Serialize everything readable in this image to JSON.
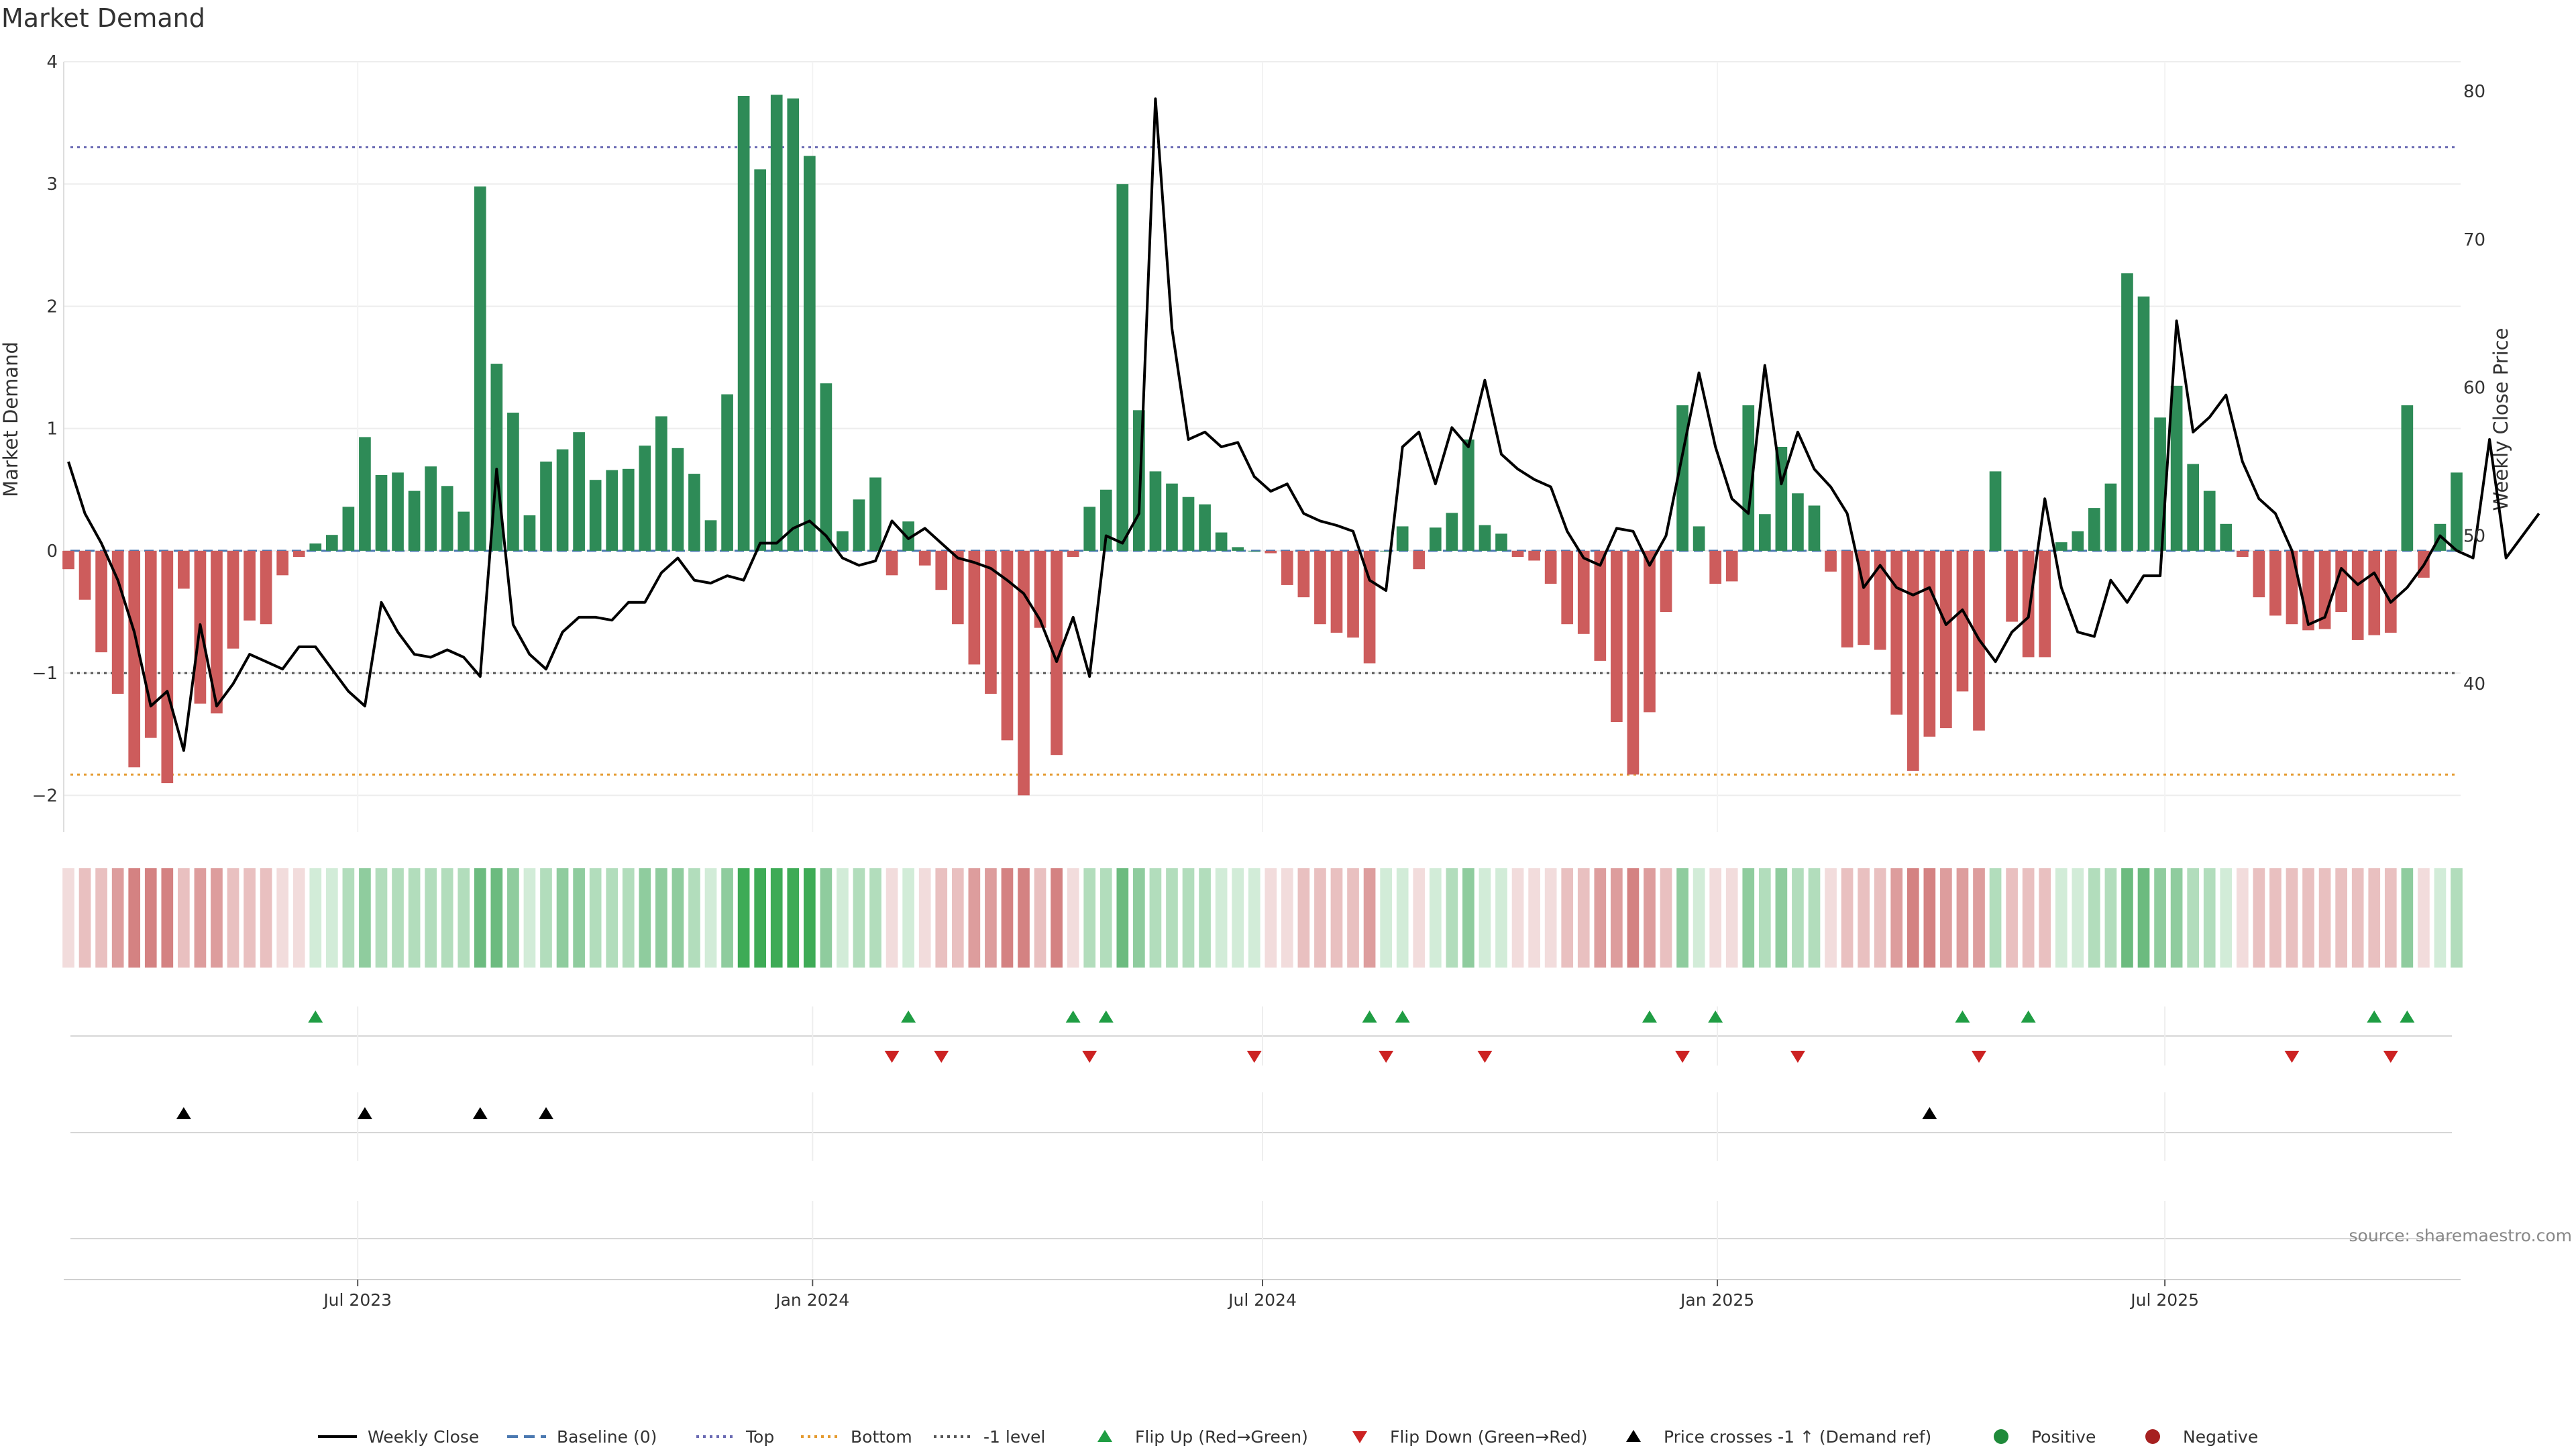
{
  "chart_data": {
    "type": "bar",
    "title": "Market Demand",
    "ylabel": "Market Demand",
    "y2label": "Weekly Close Price",
    "ylim": [
      -2.3,
      4.0
    ],
    "y2lim": [
      30,
      82
    ],
    "yticks": [
      4,
      3,
      2,
      1,
      0,
      -1,
      -2
    ],
    "yticklabels": [
      "4",
      "3",
      "2",
      "1",
      "0",
      "−1",
      "−2"
    ],
    "y2ticks": [
      80,
      70,
      60,
      50,
      40
    ],
    "y2ticklabels": [
      "80",
      "70",
      "60",
      "50",
      "40"
    ],
    "x_start": "2023-03-06",
    "x_end": "2025-10-27",
    "xticks": [
      {
        "date": "2023-07-01",
        "label": "Jul 2023"
      },
      {
        "date": "2024-01-01",
        "label": "Jan 2024"
      },
      {
        "date": "2024-07-01",
        "label": "Jul 2024"
      },
      {
        "date": "2025-01-01",
        "label": "Jan 2025"
      },
      {
        "date": "2025-07-01",
        "label": "Jul 2025"
      }
    ],
    "levels": {
      "top": 3.3,
      "bottom": -1.83,
      "minus_one": -1,
      "baseline": 0
    },
    "demand": [
      -0.15,
      -0.4,
      -0.83,
      -1.17,
      -1.77,
      -1.53,
      -1.9,
      -0.31,
      -1.25,
      -1.33,
      -0.8,
      -0.57,
      -0.6,
      -0.2,
      -0.05,
      0.06,
      0.13,
      0.36,
      0.93,
      0.62,
      0.64,
      0.49,
      0.69,
      0.53,
      0.32,
      2.98,
      1.53,
      1.13,
      0.29,
      0.73,
      0.83,
      0.97,
      0.58,
      0.66,
      0.67,
      0.86,
      1.1,
      0.84,
      0.63,
      0.25,
      1.28,
      3.72,
      3.12,
      3.73,
      3.7,
      3.23,
      1.37,
      0.16,
      0.42,
      0.6,
      -0.2,
      0.24,
      -0.12,
      -0.32,
      -0.6,
      -0.93,
      -1.17,
      -1.55,
      -2.0,
      -0.63,
      -1.67,
      -0.05,
      0.36,
      0.5,
      3.0,
      1.15,
      0.65,
      0.55,
      0.44,
      0.38,
      0.15,
      0.03,
      0.0,
      -0.02,
      -0.28,
      -0.38,
      -0.6,
      -0.67,
      -0.71,
      -0.92,
      0.0,
      0.2,
      -0.15,
      0.19,
      0.31,
      0.91,
      0.21,
      0.14,
      -0.05,
      -0.08,
      -0.27,
      -0.6,
      -0.68,
      -0.9,
      -1.4,
      -1.83,
      -1.32,
      -0.5,
      1.19,
      0.2,
      -0.27,
      -0.25,
      1.19,
      0.3,
      0.85,
      0.47,
      0.37,
      -0.17,
      -0.79,
      -0.77,
      -0.81,
      -1.34,
      -1.8,
      -1.52,
      -1.45,
      -1.15,
      -1.47,
      0.65,
      -0.58,
      -0.87,
      -0.87,
      0.07,
      0.16,
      0.35,
      0.55,
      2.27,
      2.08,
      1.09,
      1.35,
      0.71,
      0.49,
      0.22,
      -0.05,
      -0.38,
      -0.53,
      -0.6,
      -0.65,
      -0.64,
      -0.5,
      -0.73,
      -0.69,
      -0.67,
      1.19,
      -0.22,
      0.22,
      0.64
    ],
    "close": [
      55,
      51.5,
      49.5,
      47,
      43.5,
      38.5,
      39.5,
      35.5,
      44,
      38.5,
      40,
      42,
      41.5,
      41,
      42.5,
      42.5,
      41,
      39.5,
      38.5,
      45.5,
      43.5,
      42,
      41.8,
      42.3,
      41.8,
      40.5,
      54.5,
      44,
      42,
      41,
      43.5,
      44.5,
      44.5,
      44.3,
      45.5,
      45.5,
      47.5,
      48.5,
      47,
      46.8,
      47.3,
      47,
      49.5,
      49.5,
      50.5,
      51,
      50,
      48.5,
      48,
      48.3,
      51,
      49.8,
      50.5,
      49.5,
      48.5,
      48.2,
      47.8,
      47,
      46.1,
      44.3,
      41.5,
      44.5,
      40.5,
      50,
      49.5,
      51.5,
      79.5,
      64,
      56.5,
      57,
      56,
      56.3,
      54,
      53,
      53.5,
      51.5,
      51,
      50.7,
      50.3,
      47,
      46.3,
      56,
      57,
      53.5,
      57.3,
      56,
      60.5,
      55.5,
      54.5,
      53.8,
      53.3,
      50.3,
      48.5,
      48,
      50.5,
      50.3,
      48,
      50,
      55.5,
      61,
      56,
      52.5,
      51.5,
      61.5,
      53.5,
      57,
      54.5,
      53.3,
      51.5,
      46.5,
      48,
      46.5,
      46,
      46.5,
      44,
      45,
      43,
      41.5,
      43.5,
      44.5,
      52.5,
      46.5,
      43.5,
      43.2,
      47,
      45.5,
      47.3,
      47.3,
      64.5,
      57,
      58,
      59.5,
      55,
      52.5,
      51.5,
      49,
      44,
      44.5,
      47.8,
      46.7,
      47.5,
      45.5,
      46.5,
      48,
      50,
      49,
      48.5,
      56.5,
      48.5,
      50,
      51.5
    ],
    "flip_up_weeks": [
      15,
      51,
      61,
      63,
      79,
      81,
      96,
      100,
      115,
      119,
      140,
      142
    ],
    "flip_down_weeks": [
      50,
      53,
      62,
      72,
      80,
      86,
      98,
      105,
      116,
      135,
      141
    ],
    "cross_weeks": [
      7,
      18,
      25,
      29,
      113
    ],
    "heat_palette": {
      "red": [
        "#f2dcdc",
        "#e9c0c0",
        "#dd9d9d",
        "#d48282"
      ],
      "green": [
        "#d2ecd8",
        "#b2ddbc",
        "#8fcc9e",
        "#6cbb7f",
        "#3eab56"
      ]
    },
    "colors": {
      "positive": "#2e8b57",
      "negative": "#cd5c5c",
      "close": "#000000",
      "baseline": "#4a78b0",
      "top": "#6a6ab3",
      "bottom": "#e59a2e",
      "minus_one": "#555555",
      "flip_up": "#1f9d43",
      "flip_down": "#cc2222",
      "cross": "#000000",
      "grid": "#ededed"
    },
    "legend": [
      {
        "label": "Weekly Close",
        "kind": "line",
        "color": "#000000"
      },
      {
        "label": "Baseline (0)",
        "kind": "dash",
        "color": "#4a78b0"
      },
      {
        "label": "Top",
        "kind": "dot",
        "color": "#6a6ab3"
      },
      {
        "label": "Bottom",
        "kind": "dot",
        "color": "#e59a2e"
      },
      {
        "label": "-1 level",
        "kind": "dot",
        "color": "#555555"
      },
      {
        "label": "Flip Up (Red→Green)",
        "kind": "tri-up",
        "color": "#1f9d43"
      },
      {
        "label": "Flip Down (Green→Red)",
        "kind": "tri-down",
        "color": "#cc2222"
      },
      {
        "label": "Price crosses -1 ↑ (Demand ref)",
        "kind": "tri-up",
        "color": "#000000"
      },
      {
        "label": "Positive",
        "kind": "circle",
        "color": "#1f8a3a"
      },
      {
        "label": "Negative",
        "kind": "circle",
        "color": "#a62020"
      }
    ],
    "legend_placement": "bottom-center",
    "source": "source: sharemaestro.com"
  }
}
